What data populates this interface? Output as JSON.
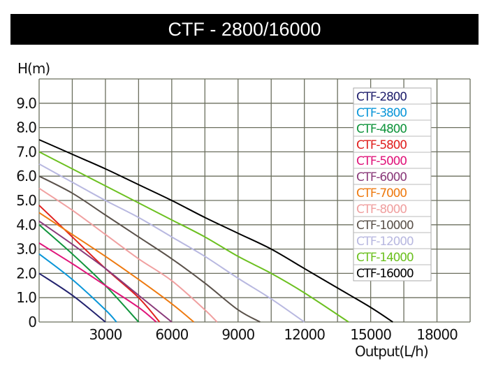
{
  "chart_data": {
    "type": "line",
    "title": "CTF - 2800/16000",
    "xlabel": "Output(L/h)",
    "ylabel": "H(m)",
    "xlim": [
      0,
      19500
    ],
    "ylim": [
      0,
      10
    ],
    "x_ticks": [
      {
        "value": 3000,
        "label": "3000"
      },
      {
        "value": 6000,
        "label": "6000"
      },
      {
        "value": 9000,
        "label": "9000"
      },
      {
        "value": 12000,
        "label": "12000"
      },
      {
        "value": 15000,
        "label": "15000"
      },
      {
        "value": 18000,
        "label": "18000"
      }
    ],
    "y_ticks": [
      {
        "value": 0,
        "label": "0"
      },
      {
        "value": 1,
        "label": "1.0"
      },
      {
        "value": 2,
        "label": "2.0"
      },
      {
        "value": 3,
        "label": "3.0"
      },
      {
        "value": 4,
        "label": "4.0"
      },
      {
        "value": 5,
        "label": "5.0"
      },
      {
        "value": 6,
        "label": "6.0"
      },
      {
        "value": 7,
        "label": "7.0"
      },
      {
        "value": 8,
        "label": "8.0"
      },
      {
        "value": 9,
        "label": "9.0"
      }
    ],
    "grid": true,
    "x_grid_step": 1500,
    "y_grid_step": 1,
    "legend_position": "top-right",
    "series": [
      {
        "name": "CTF-2800",
        "color": "#22226e",
        "points": [
          [
            0,
            2.0
          ],
          [
            1500,
            1.1
          ],
          [
            3000,
            0
          ]
        ]
      },
      {
        "name": "CTF-3800",
        "color": "#0a96d8",
        "points": [
          [
            0,
            2.8
          ],
          [
            1500,
            1.75
          ],
          [
            3000,
            0.5
          ],
          [
            3500,
            0
          ]
        ]
      },
      {
        "name": "CTF-4800",
        "color": "#10943c",
        "points": [
          [
            0,
            4.0
          ],
          [
            1500,
            2.8
          ],
          [
            3000,
            1.5
          ],
          [
            4500,
            0
          ]
        ]
      },
      {
        "name": "CTF-5800",
        "color": "#e0201e",
        "points": [
          [
            0,
            4.8
          ],
          [
            1500,
            3.5
          ],
          [
            3000,
            2.2
          ],
          [
            4500,
            1.0
          ],
          [
            5450,
            0
          ]
        ]
      },
      {
        "name": "CTF-5000",
        "color": "#e0147a",
        "points": [
          [
            0,
            3.25
          ],
          [
            1500,
            2.4
          ],
          [
            3000,
            1.5
          ],
          [
            4500,
            0.6
          ],
          [
            5300,
            0
          ]
        ]
      },
      {
        "name": "CTF-6000",
        "color": "#8a3a7a",
        "points": [
          [
            0,
            4.15
          ],
          [
            1500,
            3.2
          ],
          [
            3000,
            2.2
          ],
          [
            4500,
            1.1
          ],
          [
            6000,
            0
          ]
        ]
      },
      {
        "name": "CTF-7000",
        "color": "#ee7a10",
        "points": [
          [
            0,
            4.5
          ],
          [
            1500,
            3.6
          ],
          [
            3000,
            2.7
          ],
          [
            4500,
            1.75
          ],
          [
            6000,
            0.75
          ],
          [
            7000,
            0
          ]
        ]
      },
      {
        "name": "CTF-8000",
        "color": "#f0a0a0",
        "points": [
          [
            0,
            5.5
          ],
          [
            1500,
            4.6
          ],
          [
            3000,
            3.6
          ],
          [
            4500,
            2.6
          ],
          [
            6000,
            1.7
          ],
          [
            7500,
            0.5
          ],
          [
            8050,
            0
          ]
        ]
      },
      {
        "name": "CTF-10000",
        "color": "#5a514a",
        "points": [
          [
            0,
            6.0
          ],
          [
            1500,
            5.3
          ],
          [
            3000,
            4.4
          ],
          [
            4500,
            3.5
          ],
          [
            6000,
            2.6
          ],
          [
            7500,
            1.6
          ],
          [
            9000,
            0.5
          ],
          [
            10000,
            0
          ]
        ]
      },
      {
        "name": "CTF-12000",
        "color": "#b8b8e0",
        "points": [
          [
            0,
            6.5
          ],
          [
            1500,
            5.75
          ],
          [
            3000,
            5.0
          ],
          [
            4500,
            4.3
          ],
          [
            6000,
            3.5
          ],
          [
            7500,
            2.7
          ],
          [
            9000,
            1.8
          ],
          [
            10500,
            0.95
          ],
          [
            12000,
            0
          ]
        ]
      },
      {
        "name": "CTF-14000",
        "color": "#6cc020",
        "points": [
          [
            0,
            7.0
          ],
          [
            1500,
            6.3
          ],
          [
            3000,
            5.6
          ],
          [
            4500,
            4.9
          ],
          [
            6000,
            4.2
          ],
          [
            7500,
            3.5
          ],
          [
            9000,
            2.7
          ],
          [
            10500,
            2.0
          ],
          [
            12000,
            1.2
          ],
          [
            14000,
            0
          ]
        ]
      },
      {
        "name": "CTF-16000",
        "color": "#000000",
        "points": [
          [
            0,
            7.5
          ],
          [
            1500,
            6.9
          ],
          [
            3000,
            6.3
          ],
          [
            4500,
            5.65
          ],
          [
            6000,
            5.0
          ],
          [
            7500,
            4.3
          ],
          [
            9000,
            3.65
          ],
          [
            10500,
            3.0
          ],
          [
            12000,
            2.2
          ],
          [
            13500,
            1.4
          ],
          [
            15000,
            0.6
          ],
          [
            16000,
            0
          ]
        ]
      }
    ]
  }
}
